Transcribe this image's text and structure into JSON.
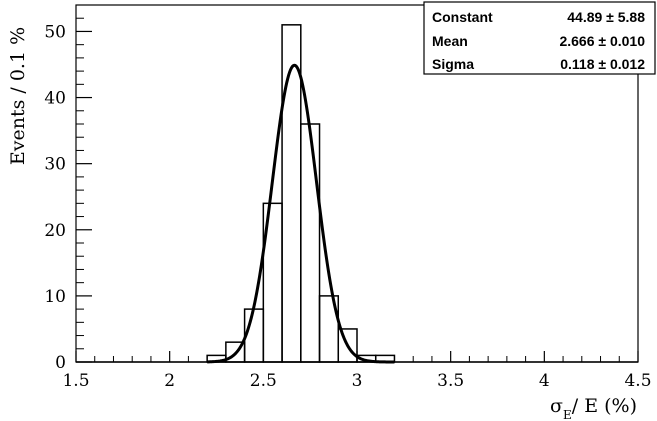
{
  "chart_data": {
    "type": "histogram",
    "title": "",
    "xlabel": "σE/ E  (%)",
    "xlabel_parts": {
      "symbol": "σ",
      "subscript": "E",
      "rest": "/ E  (%)"
    },
    "ylabel": "Events / 0.1 %",
    "xlim": [
      1.5,
      4.5
    ],
    "ylim": [
      0,
      54
    ],
    "x_ticks": [
      1.5,
      2,
      2.5,
      3,
      3.5,
      4,
      4.5
    ],
    "x_tick_labels": [
      "1.5",
      "2",
      "2.5",
      "3",
      "3.5",
      "4",
      "4.5"
    ],
    "y_ticks": [
      0,
      10,
      20,
      30,
      40,
      50
    ],
    "y_tick_labels": [
      "0",
      "10",
      "20",
      "30",
      "40",
      "50"
    ],
    "bin_width": 0.1,
    "bins": [
      {
        "x0": 2.2,
        "x1": 2.3,
        "count": 1
      },
      {
        "x0": 2.3,
        "x1": 2.4,
        "count": 3
      },
      {
        "x0": 2.4,
        "x1": 2.5,
        "count": 8
      },
      {
        "x0": 2.5,
        "x1": 2.6,
        "count": 24
      },
      {
        "x0": 2.6,
        "x1": 2.7,
        "count": 51
      },
      {
        "x0": 2.7,
        "x1": 2.8,
        "count": 36
      },
      {
        "x0": 2.8,
        "x1": 2.9,
        "count": 10
      },
      {
        "x0": 2.9,
        "x1": 3.0,
        "count": 5
      },
      {
        "x0": 3.0,
        "x1": 3.1,
        "count": 1
      },
      {
        "x0": 3.1,
        "x1": 3.2,
        "count": 1
      }
    ],
    "fit": {
      "function": "gaussian",
      "constant": 44.89,
      "mean": 2.666,
      "sigma": 0.118
    },
    "grid": false
  },
  "stats_box": {
    "rows": [
      {
        "label": "Constant",
        "value": "44.89",
        "error": "± 5.88"
      },
      {
        "label": "Mean",
        "value": "2.666",
        "error": "± 0.010"
      },
      {
        "label": "Sigma",
        "value": "0.118",
        "error": "± 0.012"
      }
    ]
  }
}
